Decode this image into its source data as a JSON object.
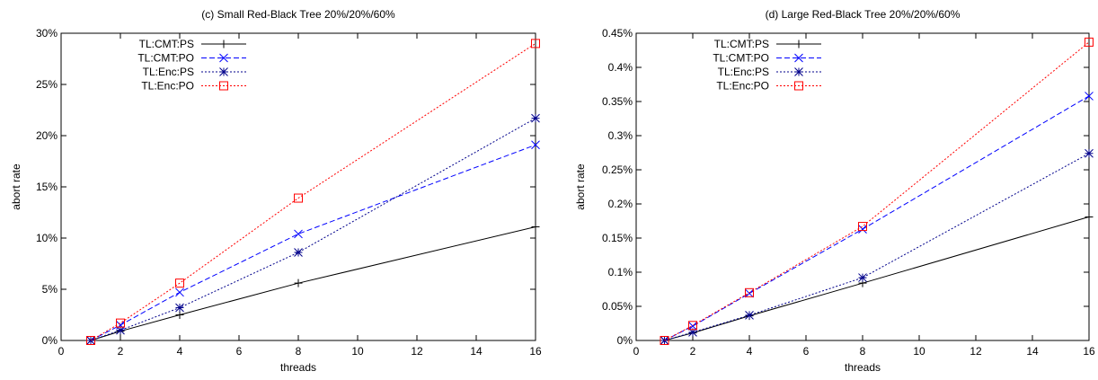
{
  "chart_data": [
    {
      "type": "line",
      "title": "(c) Small Red-Black Tree 20%/20%/60%",
      "xlabel": "threads",
      "ylabel": "abort rate",
      "xlim": [
        0,
        16
      ],
      "ylim": [
        0,
        30
      ],
      "xticks": [
        0,
        2,
        4,
        6,
        8,
        10,
        12,
        14,
        16
      ],
      "xtick_labels": [
        "0",
        "2",
        "4",
        "6",
        "8",
        "10",
        "12",
        "14",
        "16"
      ],
      "yticks": [
        0,
        5,
        10,
        15,
        20,
        25,
        30
      ],
      "ytick_labels": [
        "0%",
        "5%",
        "10%",
        "15%",
        "20%",
        "25%",
        "30%"
      ],
      "legend_position": "top-left",
      "grid": false,
      "x": [
        1,
        2,
        4,
        8,
        16
      ],
      "series": [
        {
          "name": "TL:CMT:PS",
          "values": [
            0,
            0.9,
            2.5,
            5.6,
            11.1
          ],
          "color": "#000000",
          "marker": "plus",
          "dash": "solid"
        },
        {
          "name": "TL:CMT:PO",
          "values": [
            0,
            1.5,
            4.7,
            10.4,
            19.1
          ],
          "color": "#0000ff",
          "marker": "x",
          "dash": "dashed"
        },
        {
          "name": "TL:Enc:PS",
          "values": [
            0,
            1.0,
            3.2,
            8.6,
            21.7
          ],
          "color": "#00008b",
          "marker": "star",
          "dash": "dotted"
        },
        {
          "name": "TL:Enc:PO",
          "values": [
            0,
            1.7,
            5.6,
            13.9,
            29.0
          ],
          "color": "#ff0000",
          "marker": "square",
          "dash": "dotted"
        }
      ]
    },
    {
      "type": "line",
      "title": "(d) Large Red-Black Tree 20%/20%/60%",
      "xlabel": "threads",
      "ylabel": "abort rate",
      "xlim": [
        0,
        16
      ],
      "ylim": [
        0,
        0.45
      ],
      "xticks": [
        0,
        2,
        4,
        6,
        8,
        10,
        12,
        14,
        16
      ],
      "xtick_labels": [
        "0",
        "2",
        "4",
        "6",
        "8",
        "10",
        "12",
        "14",
        "16"
      ],
      "yticks": [
        0,
        0.05,
        0.1,
        0.15,
        0.2,
        0.25,
        0.3,
        0.35,
        0.4,
        0.45
      ],
      "ytick_labels": [
        "0%",
        "0.05%",
        "0.1%",
        "0.15%",
        "0.2%",
        "0.25%",
        "0.3%",
        "0.35%",
        "0.4%",
        "0.45%"
      ],
      "legend_position": "top-left",
      "grid": false,
      "x": [
        1,
        2,
        4,
        8,
        16
      ],
      "series": [
        {
          "name": "TL:CMT:PS",
          "values": [
            0,
            0.011,
            0.036,
            0.084,
            0.181
          ],
          "color": "#000000",
          "marker": "plus",
          "dash": "solid"
        },
        {
          "name": "TL:CMT:PO",
          "values": [
            0,
            0.021,
            0.069,
            0.163,
            0.358
          ],
          "color": "#0000ff",
          "marker": "x",
          "dash": "dashed"
        },
        {
          "name": "TL:Enc:PS",
          "values": [
            0,
            0.012,
            0.037,
            0.092,
            0.274
          ],
          "color": "#00008b",
          "marker": "star",
          "dash": "dotted"
        },
        {
          "name": "TL:Enc:PO",
          "values": [
            0,
            0.022,
            0.07,
            0.167,
            0.437
          ],
          "color": "#ff0000",
          "marker": "square",
          "dash": "dotted"
        }
      ]
    }
  ]
}
